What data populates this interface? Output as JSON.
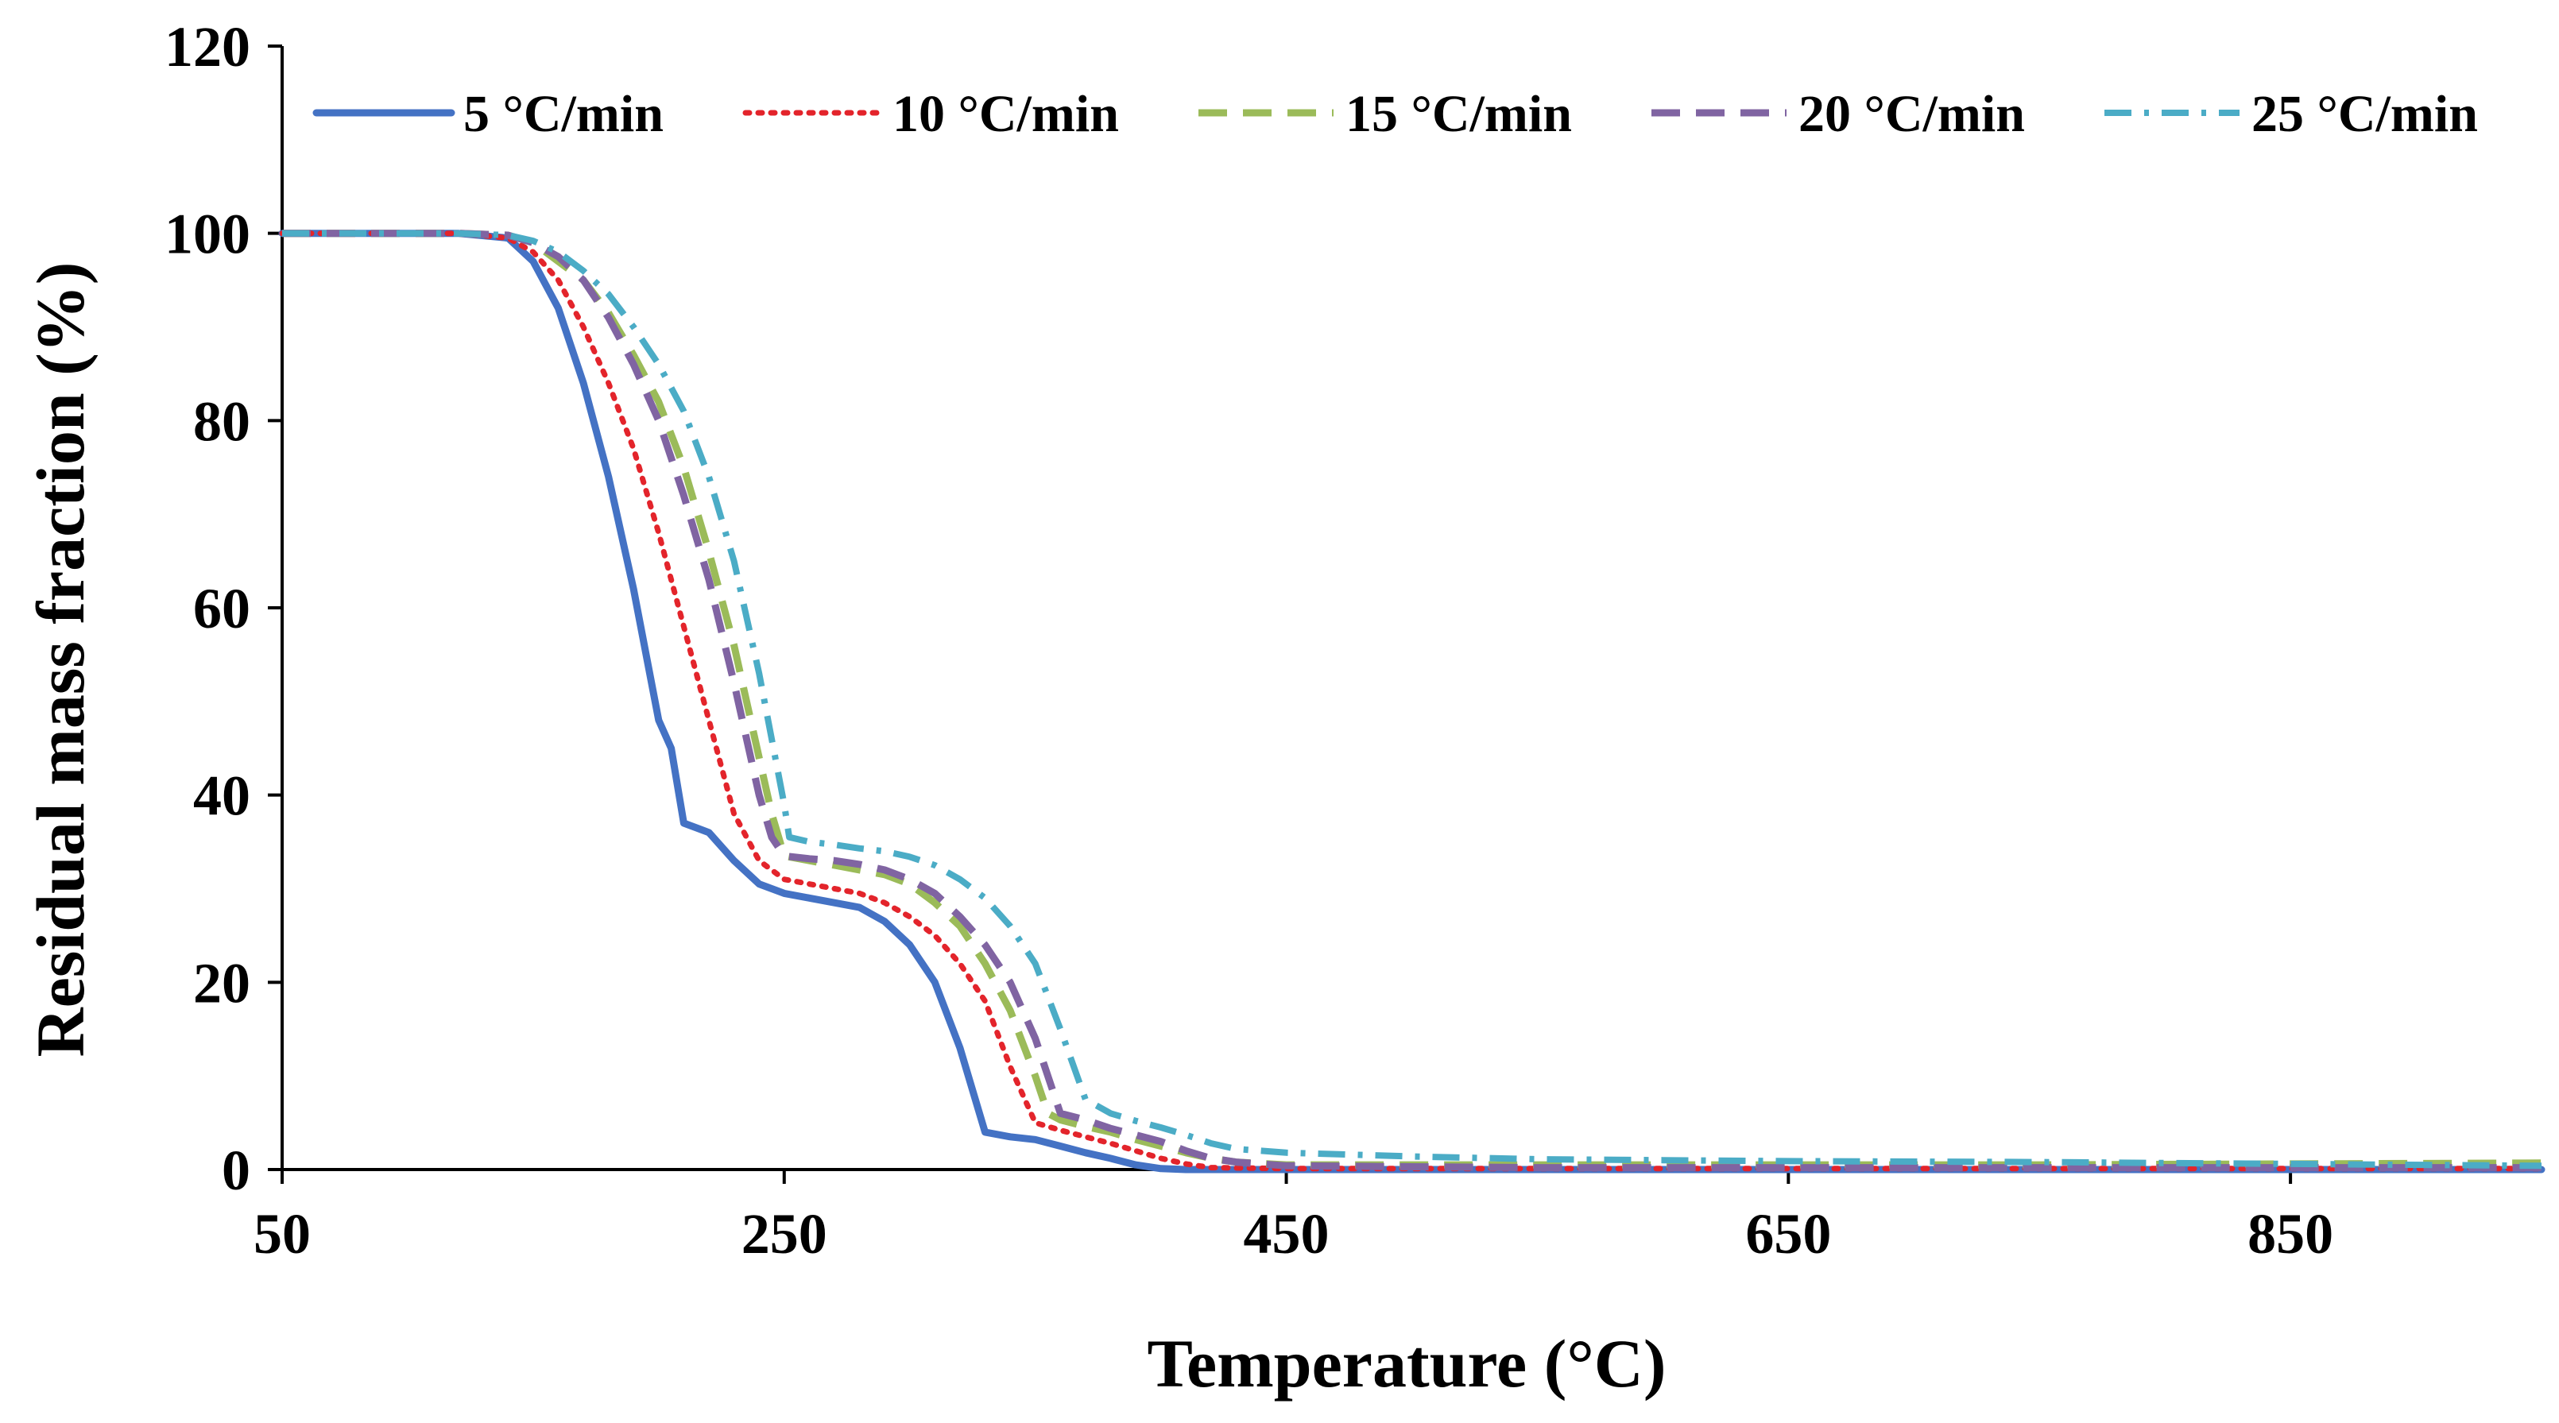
{
  "chart_data": {
    "type": "line",
    "title": "",
    "xlabel": "Temperature (°C)",
    "ylabel": "Residual mass fraction (%)",
    "xlim": [
      50,
      950
    ],
    "ylim": [
      0,
      120
    ],
    "xticks": [
      50,
      250,
      450,
      650,
      850
    ],
    "yticks": [
      0,
      20,
      40,
      60,
      80,
      100,
      120
    ],
    "grid": false,
    "legend_position": "top",
    "series": [
      {
        "name": "5 °C/min",
        "color": "#4472C4",
        "style": "solid",
        "x": [
          50,
          120,
          140,
          150,
          160,
          170,
          180,
          190,
          200,
          205,
          210,
          215,
          220,
          230,
          240,
          250,
          260,
          270,
          280,
          290,
          300,
          310,
          320,
          330,
          340,
          350,
          360,
          370,
          380,
          390,
          400,
          410,
          450,
          550,
          650,
          750,
          850,
          950
        ],
        "y": [
          100,
          100,
          99.5,
          97,
          92,
          84,
          74,
          62,
          48,
          45,
          37,
          36.5,
          36,
          33,
          30.5,
          29.5,
          29,
          28.5,
          28,
          26.5,
          24,
          20,
          13,
          4,
          3.5,
          3.2,
          2.5,
          1.8,
          1.2,
          0.5,
          0.1,
          0,
          0,
          0,
          0,
          0,
          0,
          0
        ]
      },
      {
        "name": "10 °C/min",
        "color": "#E3242B",
        "style": "dotted",
        "x": [
          50,
          120,
          140,
          150,
          160,
          170,
          180,
          190,
          200,
          210,
          220,
          230,
          240,
          250,
          260,
          270,
          280,
          290,
          300,
          310,
          320,
          330,
          340,
          350,
          360,
          370,
          380,
          390,
          400,
          410,
          420,
          450,
          550,
          650,
          750,
          850,
          950
        ],
        "y": [
          100,
          100,
          99.5,
          98,
          95,
          90,
          84,
          77,
          68,
          58,
          48,
          38,
          33,
          31,
          30.5,
          30,
          29.5,
          28.5,
          27,
          25,
          22,
          18,
          11,
          5,
          4.2,
          3.5,
          2.8,
          2,
          1.2,
          0.6,
          0.2,
          0.1,
          0.1,
          0.1,
          0.1,
          0.1,
          0.1
        ]
      },
      {
        "name": "15 °C/min",
        "color": "#9BBB59",
        "style": "dashed",
        "x": [
          50,
          120,
          140,
          150,
          160,
          170,
          180,
          190,
          200,
          210,
          220,
          230,
          240,
          245,
          250,
          260,
          270,
          280,
          290,
          300,
          310,
          320,
          330,
          340,
          350,
          355,
          360,
          370,
          380,
          390,
          400,
          410,
          420,
          430,
          450,
          550,
          650,
          750,
          850,
          950
        ],
        "y": [
          100,
          100,
          99.8,
          99,
          97,
          95,
          91.5,
          87,
          82,
          75,
          66,
          56,
          44,
          38,
          33.5,
          33,
          32.5,
          32,
          31.5,
          30.5,
          28.5,
          26,
          22,
          17,
          10,
          6,
          5.3,
          4.6,
          4,
          3.2,
          2.5,
          1.8,
          1.2,
          0.8,
          0.5,
          0.5,
          0.5,
          0.5,
          0.6,
          0.7
        ]
      },
      {
        "name": "20 °C/min",
        "color": "#8064A2",
        "style": "dashed",
        "x": [
          50,
          120,
          140,
          150,
          160,
          170,
          180,
          190,
          200,
          210,
          220,
          230,
          240,
          245,
          250,
          260,
          270,
          280,
          290,
          300,
          310,
          320,
          330,
          340,
          350,
          360,
          370,
          380,
          390,
          400,
          410,
          420,
          430,
          450,
          550,
          650,
          750,
          850,
          950
        ],
        "y": [
          100,
          100,
          99.8,
          99,
          97.5,
          95,
          91,
          86,
          80,
          72,
          63,
          52,
          40,
          35.5,
          33.5,
          33.2,
          33,
          32.6,
          32,
          31,
          29.5,
          27,
          24,
          20,
          14,
          6,
          5.3,
          4.4,
          3.7,
          3,
          2,
          1.2,
          0.8,
          0.4,
          0.2,
          0.2,
          0.2,
          0.2,
          0.2
        ]
      },
      {
        "name": "25 °C/min",
        "color": "#4BACC6",
        "style": "dashdot",
        "x": [
          50,
          120,
          140,
          150,
          160,
          170,
          180,
          190,
          200,
          210,
          220,
          230,
          240,
          250,
          252,
          260,
          270,
          280,
          290,
          300,
          310,
          320,
          330,
          340,
          350,
          360,
          370,
          380,
          390,
          400,
          410,
          420,
          430,
          440,
          450,
          500,
          550,
          600,
          650,
          750,
          850,
          950
        ],
        "y": [
          100,
          100,
          99.8,
          99.2,
          98,
          96,
          93.5,
          90,
          86,
          81,
          74,
          65,
          53,
          39,
          35.5,
          35,
          34.7,
          34.3,
          34,
          33.4,
          32.5,
          31,
          29,
          26,
          22,
          15,
          7.5,
          6,
          5.2,
          4.5,
          3.7,
          2.8,
          2.2,
          2,
          1.8,
          1.4,
          1.1,
          1,
          0.9,
          0.8,
          0.6,
          0.4
        ]
      }
    ]
  }
}
